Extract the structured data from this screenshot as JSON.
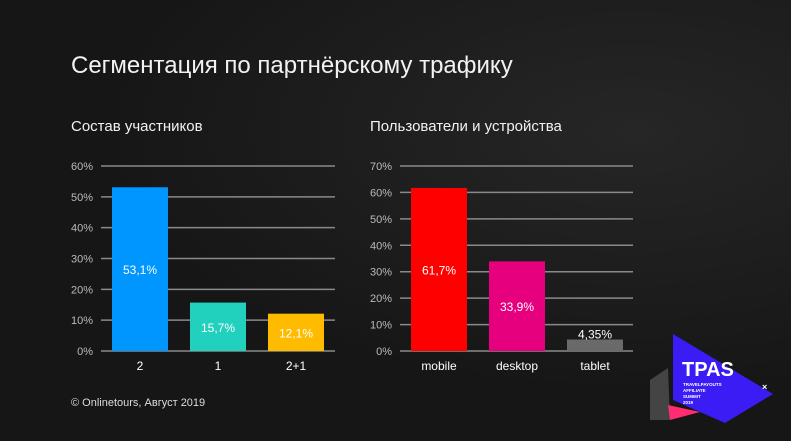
{
  "title": "Сегментация по партнёрскому трафику",
  "footer": "© Onlinetours, Август 2019",
  "logo": {
    "main": "TPAS",
    "lines": [
      "TRAVELPAYOUTS",
      "AFFILIATE",
      "SUMMIT",
      "2019"
    ]
  },
  "chart_data": [
    {
      "type": "bar",
      "title": "Состав участников",
      "categories": [
        "2",
        "1",
        "2+1"
      ],
      "values": [
        53.1,
        15.7,
        12.1
      ],
      "labels": [
        "53,1%",
        "15,7%",
        "12,1%"
      ],
      "colors": [
        "#0096ff",
        "#22d0be",
        "#ffbb00"
      ],
      "yticks": [
        "0%",
        "10%",
        "20%",
        "30%",
        "40%",
        "50%",
        "60%"
      ],
      "ylim": [
        0,
        60
      ],
      "grid": true
    },
    {
      "type": "bar",
      "title": "Пользователи и устройства",
      "categories": [
        "mobile",
        "desktop",
        "tablet"
      ],
      "values": [
        61.7,
        33.9,
        4.35
      ],
      "labels": [
        "61,7%",
        "33,9%",
        "4,35%"
      ],
      "colors": [
        "#ff0000",
        "#e6007e",
        "#6a6a6a"
      ],
      "yticks": [
        "0%",
        "10%",
        "20%",
        "30%",
        "40%",
        "50%",
        "60%",
        "70%"
      ],
      "ylim": [
        0,
        70
      ],
      "grid": true
    }
  ]
}
